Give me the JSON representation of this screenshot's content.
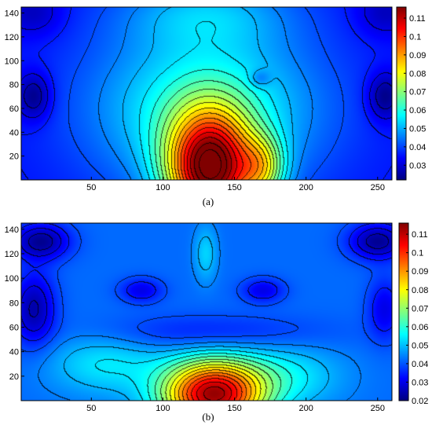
{
  "figure": {
    "panels": [
      {
        "caption": "(a)"
      },
      {
        "caption": "(b)"
      }
    ]
  },
  "chart_data": [
    {
      "type": "heatmap",
      "title": "",
      "caption": "(a)",
      "xlabel": "",
      "ylabel": "",
      "xlim": [
        1,
        260
      ],
      "ylim": [
        0,
        145
      ],
      "xticks": [
        50,
        100,
        150,
        200,
        250
      ],
      "yticks": [
        20,
        40,
        60,
        80,
        100,
        120,
        140
      ],
      "colorbar": {
        "range": [
          0.022,
          0.116
        ],
        "ticks": [
          0.03,
          0.04,
          0.05,
          0.06,
          0.07,
          0.08,
          0.09,
          0.1,
          0.11
        ]
      },
      "colormap": "jet",
      "contour_lines": true,
      "field": {
        "base": 0.035,
        "features": [
          {
            "x": 133,
            "y": 8,
            "value": 0.075,
            "sx": 30,
            "sy": 48
          },
          {
            "x": 170,
            "y": 10,
            "value": 0.025,
            "sx": 16,
            "sy": 26
          },
          {
            "x": 130,
            "y": 60,
            "value": 0.025,
            "sx": 80,
            "sy": 70
          },
          {
            "x": 10,
            "y": 70,
            "value": -0.014,
            "sx": 12,
            "sy": 20
          },
          {
            "x": 255,
            "y": 70,
            "value": -0.014,
            "sx": 12,
            "sy": 20
          },
          {
            "x": 10,
            "y": 140,
            "value": -0.008,
            "sx": 20,
            "sy": 20
          },
          {
            "x": 255,
            "y": 140,
            "value": -0.008,
            "sx": 20,
            "sy": 20
          },
          {
            "x": 168,
            "y": 85,
            "value": -0.008,
            "sx": 7,
            "sy": 7
          },
          {
            "x": 130,
            "y": 140,
            "value": 0.012,
            "sx": 60,
            "sy": 30
          }
        ]
      }
    },
    {
      "type": "heatmap",
      "title": "",
      "caption": "(b)",
      "xlabel": "",
      "ylabel": "",
      "xlim": [
        1,
        260
      ],
      "ylim": [
        0,
        145
      ],
      "xticks": [
        50,
        100,
        150,
        200,
        250
      ],
      "yticks": [
        20,
        40,
        60,
        80,
        100,
        120,
        140
      ],
      "colorbar": {
        "range": [
          0.02,
          0.116
        ],
        "ticks": [
          0.02,
          0.03,
          0.04,
          0.05,
          0.06,
          0.07,
          0.08,
          0.09,
          0.1,
          0.11
        ]
      },
      "colormap": "jet",
      "contour_lines": true,
      "field": {
        "base": 0.042,
        "features": [
          {
            "x": 135,
            "y": 5,
            "value": 0.07,
            "sx": 35,
            "sy": 28
          },
          {
            "x": 185,
            "y": 20,
            "value": 0.012,
            "sx": 40,
            "sy": 25
          },
          {
            "x": 60,
            "y": 30,
            "value": 0.012,
            "sx": 40,
            "sy": 25
          },
          {
            "x": 10,
            "y": 75,
            "value": -0.018,
            "sx": 15,
            "sy": 30
          },
          {
            "x": 255,
            "y": 75,
            "value": -0.012,
            "sx": 12,
            "sy": 25
          },
          {
            "x": 85,
            "y": 90,
            "value": -0.012,
            "sx": 15,
            "sy": 10
          },
          {
            "x": 170,
            "y": 90,
            "value": -0.012,
            "sx": 15,
            "sy": 10
          },
          {
            "x": 15,
            "y": 130,
            "value": -0.02,
            "sx": 20,
            "sy": 15
          },
          {
            "x": 250,
            "y": 130,
            "value": -0.02,
            "sx": 20,
            "sy": 15
          },
          {
            "x": 130,
            "y": 120,
            "value": 0.01,
            "sx": 8,
            "sy": 22
          },
          {
            "x": 130,
            "y": 55,
            "value": -0.008,
            "sx": 80,
            "sy": 15
          }
        ]
      }
    }
  ]
}
